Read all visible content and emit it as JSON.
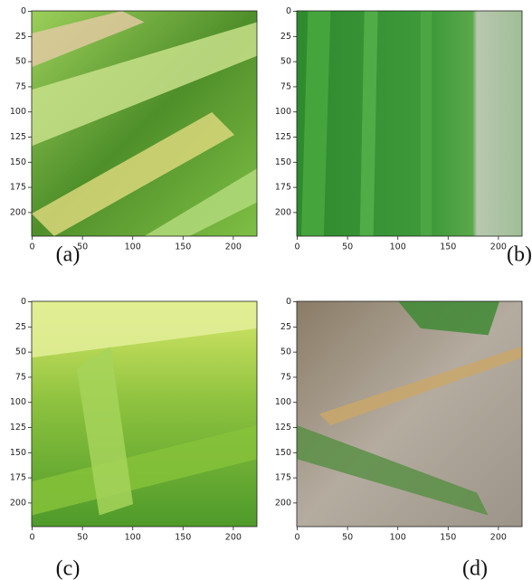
{
  "panels": [
    {
      "caption": "(a)",
      "xlim": [
        -0.5,
        223.5
      ],
      "ylim": [
        223.5,
        -0.5
      ],
      "xticks": [
        0,
        50,
        100,
        150,
        200
      ],
      "yticks": [
        0,
        25,
        50,
        75,
        100,
        125,
        150,
        175,
        200
      ]
    },
    {
      "caption": "(b)",
      "xlim": [
        -0.5,
        223.5
      ],
      "ylim": [
        223.5,
        -0.5
      ],
      "xticks": [
        0,
        50,
        100,
        150,
        200
      ],
      "yticks": [
        0,
        25,
        50,
        75,
        100,
        125,
        150,
        175,
        200
      ]
    },
    {
      "caption": "(c)",
      "xlim": [
        -0.5,
        223.5
      ],
      "ylim": [
        223.5,
        -0.5
      ],
      "xticks": [
        0,
        50,
        100,
        150,
        200
      ],
      "yticks": [
        0,
        25,
        50,
        75,
        100,
        125,
        150,
        175,
        200
      ]
    },
    {
      "caption": "(d)",
      "xlim": [
        -0.5,
        223.5
      ],
      "ylim": [
        223.5,
        -0.5
      ],
      "xticks": [
        0,
        50,
        100,
        150,
        200
      ],
      "yticks": [
        0,
        25,
        50,
        75,
        100,
        125,
        150,
        175,
        200
      ]
    }
  ]
}
